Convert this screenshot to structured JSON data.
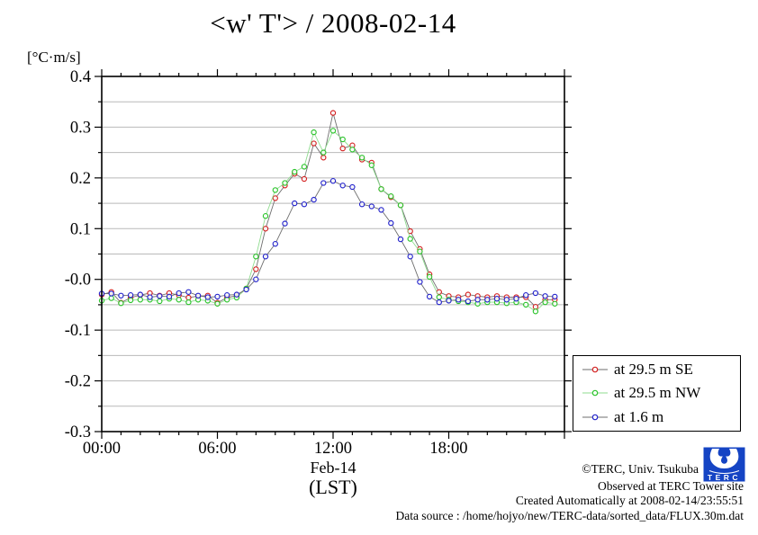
{
  "title": "<w' T'> / 2008-02-14",
  "y_axis": {
    "unit_label": "[°C·m/s]",
    "tick_labels": [
      "0.4",
      "0.3",
      "0.2",
      "0.1",
      "-0.0",
      "-0.1",
      "-0.2",
      "-0.3"
    ],
    "tick_values": [
      0.4,
      0.3,
      0.2,
      0.1,
      0.0,
      -0.1,
      -0.2,
      -0.3
    ]
  },
  "x_axis": {
    "tick_labels": [
      "00:00",
      "06:00",
      "12:00",
      "18:00"
    ],
    "tick_hours": [
      0,
      6,
      12,
      18
    ],
    "date_label": "Feb-14",
    "timezone_label": "(LST)"
  },
  "legend": {
    "items": [
      {
        "label": "at 29.5 m SE",
        "marker_color": "#d42222",
        "line_color": "#6e6e6e"
      },
      {
        "label": "at 29.5 m NW",
        "marker_color": "#2cc42c",
        "line_color": "#8fdc8f"
      },
      {
        "label": "at 1.6 m",
        "marker_color": "#2424cc",
        "line_color": "#6e6e6e"
      }
    ]
  },
  "footer": {
    "lines": [
      "©TERC, Univ. Tsukuba",
      "Observed at TERC Tower site",
      "Created Automatically at 2008-02-14/23:55:51",
      "Data source : /home/hojyo/new/TERC-data/sorted_data/FLUX.30m.dat"
    ],
    "logo_text": "TERC",
    "logo_color": "#1544c4"
  },
  "chart_data": {
    "type": "line",
    "title": "<w' T'> / 2008-02-14",
    "xlabel": "Feb-14 (LST)",
    "ylabel": "[°C·m/s]",
    "xlim_hours": [
      0,
      24
    ],
    "ylim": [
      -0.3,
      0.4
    ],
    "grid": true,
    "grid_step": 0.05,
    "x_tick_step_hours": 1,
    "x_major_tick_hours": [
      0,
      6,
      12,
      18,
      24
    ],
    "y_major_tick_step": 0.1,
    "legend_position": "outside-right-bottom",
    "x_hours": [
      0,
      0.5,
      1,
      1.5,
      2,
      2.5,
      3,
      3.5,
      4,
      4.5,
      5,
      5.5,
      6,
      6.5,
      7,
      7.5,
      8,
      8.5,
      9,
      9.5,
      10,
      10.5,
      11,
      11.5,
      12,
      12.5,
      13,
      13.5,
      14,
      14.5,
      15,
      15.5,
      16,
      16.5,
      17,
      17.5,
      18,
      18.5,
      19,
      19.5,
      20,
      20.5,
      21,
      21.5,
      22,
      22.5,
      23,
      23.5
    ],
    "series": [
      {
        "name": "at 29.5 m SE",
        "marker_color": "#d42222",
        "line_color": "#6e6e6e",
        "values": [
          -0.03,
          -0.025,
          -0.046,
          -0.036,
          -0.031,
          -0.027,
          -0.032,
          -0.027,
          -0.031,
          -0.036,
          -0.033,
          -0.032,
          -0.046,
          -0.036,
          -0.032,
          -0.018,
          0.02,
          0.1,
          0.16,
          0.185,
          0.208,
          0.198,
          0.268,
          0.24,
          0.328,
          0.258,
          0.264,
          0.236,
          0.23,
          0.178,
          0.162,
          0.146,
          0.095,
          0.06,
          0.01,
          -0.025,
          -0.033,
          -0.035,
          -0.03,
          -0.033,
          -0.035,
          -0.033,
          -0.035,
          -0.035,
          -0.035,
          -0.054,
          -0.04,
          -0.04
        ]
      },
      {
        "name": "at 29.5 m NW",
        "marker_color": "#2cc42c",
        "line_color": "#8fdc8f",
        "values": [
          -0.042,
          -0.037,
          -0.047,
          -0.041,
          -0.04,
          -0.04,
          -0.043,
          -0.038,
          -0.04,
          -0.045,
          -0.04,
          -0.042,
          -0.048,
          -0.04,
          -0.036,
          -0.018,
          0.045,
          0.125,
          0.176,
          0.19,
          0.212,
          0.222,
          0.29,
          0.25,
          0.293,
          0.276,
          0.256,
          0.24,
          0.225,
          0.178,
          0.164,
          0.146,
          0.08,
          0.055,
          0.005,
          -0.035,
          -0.04,
          -0.043,
          -0.045,
          -0.048,
          -0.045,
          -0.045,
          -0.047,
          -0.045,
          -0.05,
          -0.063,
          -0.045,
          -0.048
        ]
      },
      {
        "name": "at 1.6 m",
        "marker_color": "#2424cc",
        "line_color": "#6e6e6e",
        "values": [
          -0.028,
          -0.028,
          -0.032,
          -0.031,
          -0.03,
          -0.035,
          -0.033,
          -0.034,
          -0.027,
          -0.025,
          -0.032,
          -0.035,
          -0.034,
          -0.031,
          -0.03,
          -0.02,
          0.0,
          0.045,
          0.07,
          0.11,
          0.15,
          0.148,
          0.157,
          0.19,
          0.194,
          0.185,
          0.182,
          0.148,
          0.144,
          0.137,
          0.111,
          0.079,
          0.045,
          -0.005,
          -0.034,
          -0.045,
          -0.042,
          -0.04,
          -0.043,
          -0.04,
          -0.04,
          -0.038,
          -0.04,
          -0.038,
          -0.031,
          -0.027,
          -0.033,
          -0.034
        ]
      }
    ]
  }
}
